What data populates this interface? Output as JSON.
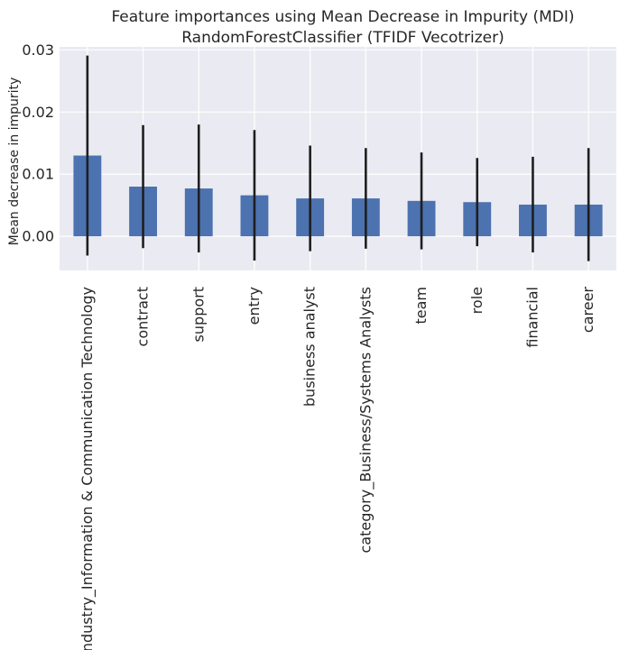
{
  "chart_data": {
    "type": "bar",
    "title": "Feature importances using Mean Decrease in Impurity (MDI)",
    "subtitle": "RandomForestClassifier (TFIDF Vecotrizer)",
    "xlabel": "",
    "ylabel": "Mean decrease in impurity",
    "ylim": [
      -0.0055,
      0.0305
    ],
    "yticks": [
      0.0,
      0.01,
      0.02,
      0.03
    ],
    "ytick_labels": [
      "0.00",
      "0.01",
      "0.02",
      "0.03"
    ],
    "grid": true,
    "categories": [
      "industry_Information & Communication Technology",
      "contract",
      "support",
      "entry",
      "business analyst",
      "category_Business/Systems Analysts",
      "team",
      "role",
      "financial",
      "career"
    ],
    "values": [
      0.013,
      0.008,
      0.0077,
      0.0066,
      0.0061,
      0.0061,
      0.0057,
      0.0055,
      0.0051,
      0.0051
    ],
    "errors": [
      0.0161,
      0.0099,
      0.0103,
      0.0105,
      0.0085,
      0.0081,
      0.0078,
      0.0071,
      0.0077,
      0.0091
    ],
    "colors": {
      "bar": "#4c72b0",
      "error_bar": "#1f1f1f",
      "plot_background": "#eaeaf2",
      "grid": "#ffffff",
      "text": "#262626"
    }
  }
}
